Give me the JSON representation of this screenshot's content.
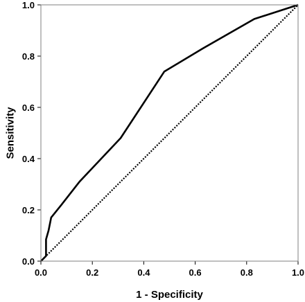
{
  "chart_data": {
    "type": "line",
    "xlabel": "1 - Specificity",
    "ylabel": "Sensitivity",
    "xlim": [
      0,
      1
    ],
    "ylim": [
      0,
      1
    ],
    "x_ticks": [
      "0.0",
      "0.2",
      "0.4",
      "0.6",
      "0.8",
      "1.0"
    ],
    "y_ticks": [
      "0.0",
      "0.2",
      "0.4",
      "0.6",
      "0.8",
      "1.0"
    ],
    "grid": false,
    "series": [
      {
        "style": "solid",
        "color": "#000000",
        "points": [
          {
            "x": 0.0,
            "y": 0.0
          },
          {
            "x": 0.01,
            "y": 0.01
          },
          {
            "x": 0.02,
            "y": 0.02
          },
          {
            "x": 0.02,
            "y": 0.085
          },
          {
            "x": 0.03,
            "y": 0.12
          },
          {
            "x": 0.04,
            "y": 0.17
          },
          {
            "x": 0.08,
            "y": 0.22
          },
          {
            "x": 0.15,
            "y": 0.31
          },
          {
            "x": 0.31,
            "y": 0.48
          },
          {
            "x": 0.48,
            "y": 0.74
          },
          {
            "x": 0.63,
            "y": 0.83
          },
          {
            "x": 0.83,
            "y": 0.945
          },
          {
            "x": 1.0,
            "y": 1.0
          }
        ]
      },
      {
        "style": "dotted",
        "color": "#000000",
        "points": [
          {
            "x": 0.0,
            "y": 0.0
          },
          {
            "x": 1.0,
            "y": 1.0
          }
        ]
      }
    ]
  }
}
